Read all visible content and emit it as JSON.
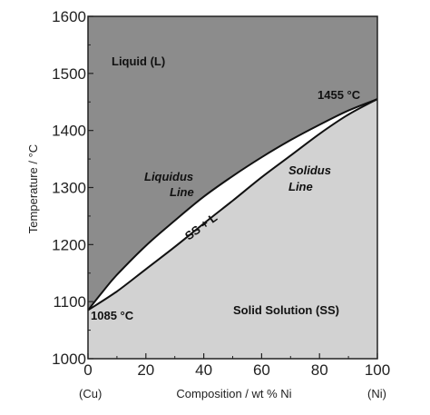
{
  "chart_data": {
    "type": "area",
    "xlabel": "Composition / wt % Ni",
    "ylabel": "Temperature / °C",
    "xlim": [
      0,
      100
    ],
    "ylim": [
      1000,
      1600
    ],
    "x_ticks": [
      "0",
      "20",
      "40",
      "60",
      "80",
      "100"
    ],
    "y_ticks": [
      "1000",
      "1100",
      "1200",
      "1300",
      "1400",
      "1500",
      "1600"
    ],
    "x_end_labels": {
      "left": "(Cu)",
      "right": "(Ni)"
    },
    "grid": false,
    "series": [
      {
        "name": "Liquidus Line",
        "x": [
          0,
          5,
          10,
          20,
          30,
          40,
          50,
          60,
          70,
          80,
          90,
          100
        ],
        "y": [
          1085,
          1117,
          1147,
          1198,
          1242,
          1284,
          1320,
          1353,
          1383,
          1410,
          1435,
          1455
        ]
      },
      {
        "name": "Solidus Line",
        "x": [
          0,
          10,
          20,
          30,
          40,
          50,
          60,
          70,
          80,
          90,
          100
        ],
        "y": [
          1085,
          1118,
          1157,
          1196,
          1237,
          1277,
          1318,
          1356,
          1394,
          1428,
          1455
        ]
      }
    ],
    "regions": [
      {
        "label": "Liquid (L)",
        "color": "#8c8c8c"
      },
      {
        "label": "SS + L",
        "color": "#ffffff"
      },
      {
        "label": "Solid Solution (SS)",
        "color": "#d2d2d2"
      }
    ],
    "annotations": {
      "liquidus": [
        "Liquidus",
        "Line"
      ],
      "solidus": [
        "Solidus",
        "Line"
      ],
      "cu_melt": "1085 °C",
      "ni_melt": "1455 °C"
    }
  }
}
